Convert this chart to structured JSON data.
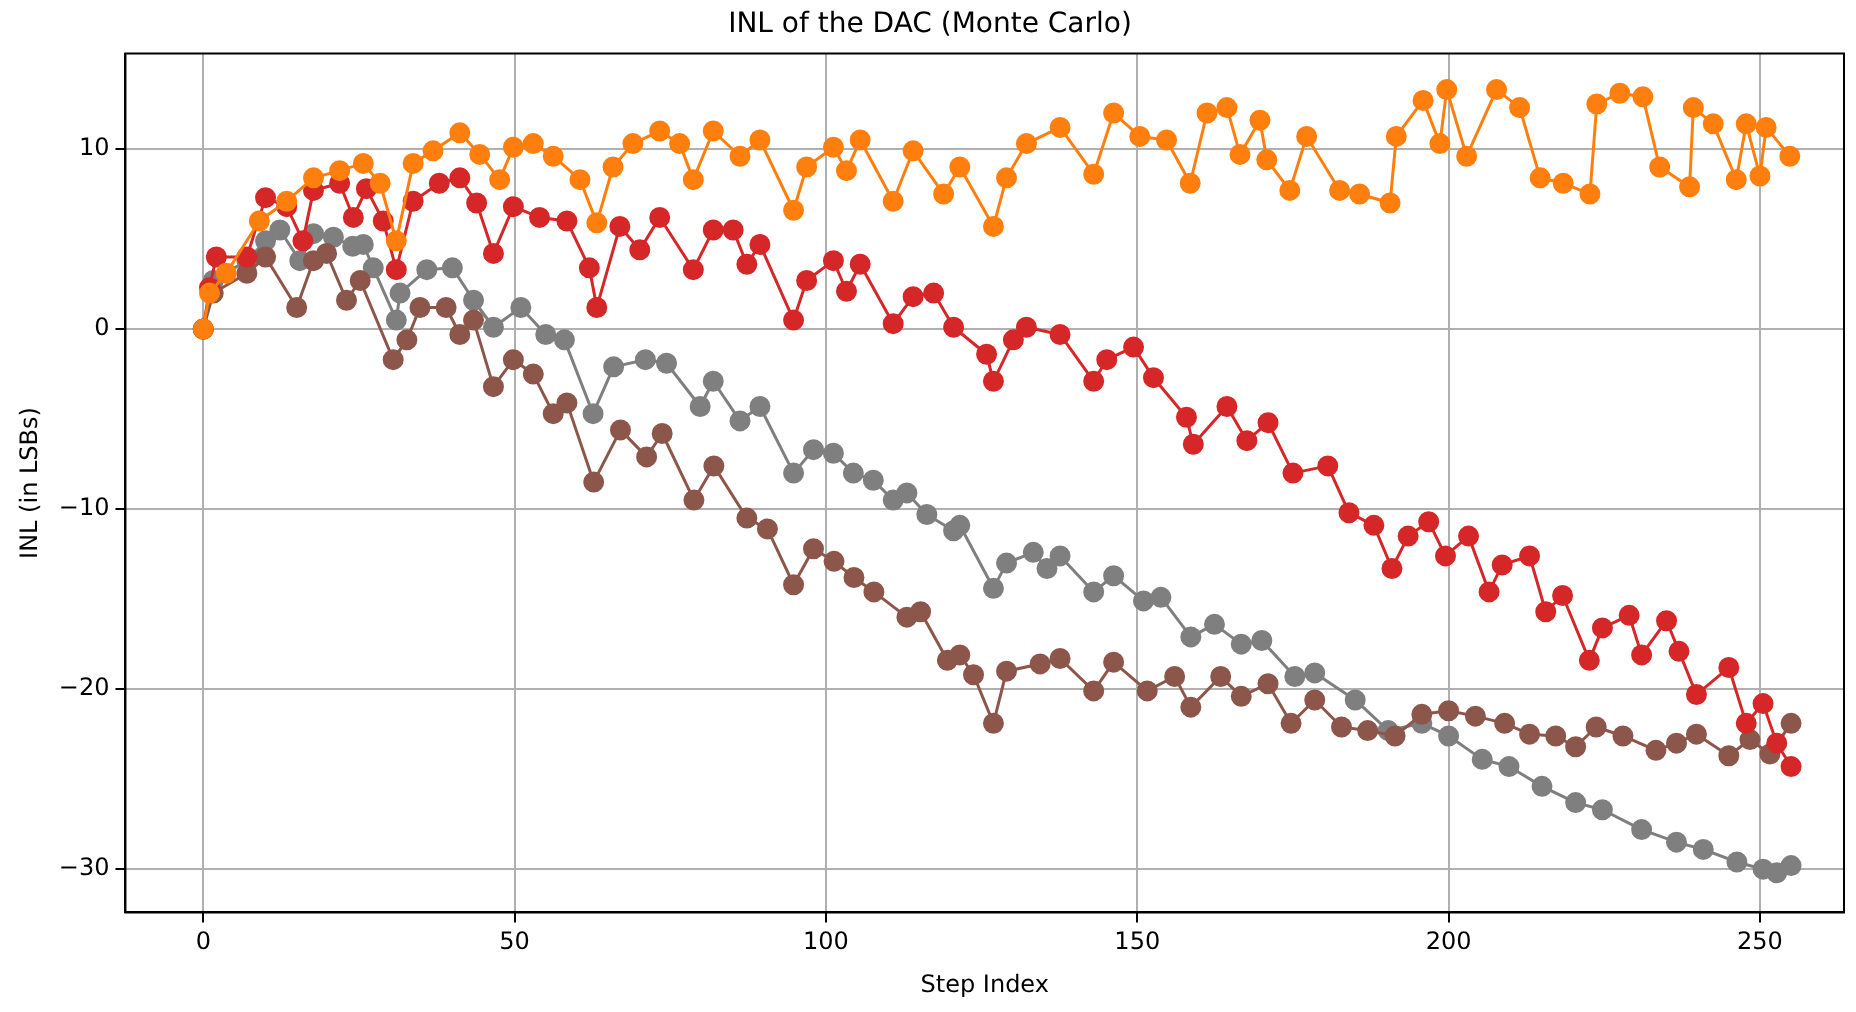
{
  "chart_data": {
    "type": "line",
    "title": "INL of the DAC (Monte Carlo)",
    "xlabel": "Step Index",
    "ylabel": "INL (in LSBs)",
    "xlim": [
      -12.5,
      263.5
    ],
    "ylim": [
      -32.4,
      15.3
    ],
    "xticks": [
      0,
      50,
      100,
      150,
      200,
      250
    ],
    "yticks": [
      -30,
      -20,
      -10,
      0,
      10
    ],
    "grid": true,
    "marker": "circle",
    "line_style": "solid",
    "series": [
      {
        "color": "#ff7f0e",
        "x": [
          0,
          1,
          3.7,
          9,
          13.4,
          17.7,
          21.9,
          25.7,
          28.4,
          31,
          33.7,
          36.9,
          41.2,
          44.4,
          47.6,
          49.8,
          53,
          56.2,
          60.5,
          63.2,
          65.8,
          69,
          73.3,
          76.5,
          78.7,
          81.9,
          86.2,
          89.4,
          94.8,
          96.9,
          101.2,
          103.3,
          105.5,
          110.8,
          114,
          118.9,
          121.5,
          126.9,
          129,
          132.2,
          137.6,
          143,
          146.2,
          150.4,
          154.7,
          158.5,
          161.2,
          164.4,
          166.5,
          169.7,
          170.8,
          174.5,
          177.2,
          182.5,
          185.7,
          190.6,
          191.6,
          195.9,
          198.6,
          199.7,
          202.9,
          207.7,
          211.4,
          214.7,
          218.4,
          222.7,
          223.8,
          227.5,
          231.2,
          233.9,
          238.7,
          239.3,
          242.5,
          246.2,
          247.8,
          250,
          251,
          254.8
        ],
        "values": [
          0,
          2,
          3.1,
          6,
          7.1,
          8.4,
          8.8,
          9.2,
          8.1,
          4.9,
          9.2,
          9.9,
          10.9,
          9.7,
          8.3,
          10.1,
          10.3,
          9.6,
          8.3,
          5.9,
          9,
          10.3,
          11,
          10.3,
          8.3,
          11,
          9.6,
          10.5,
          6.6,
          9,
          10.1,
          8.8,
          10.5,
          7.1,
          9.9,
          7.5,
          9,
          5.7,
          8.4,
          10.3,
          11.2,
          8.6,
          12,
          10.7,
          10.5,
          8.1,
          12,
          12.3,
          9.7,
          11.6,
          9.4,
          7.7,
          10.7,
          7.7,
          7.5,
          7,
          10.7,
          12.7,
          10.3,
          13.3,
          9.6,
          13.3,
          12.3,
          8.4,
          8.1,
          7.5,
          12.5,
          13.1,
          12.9,
          9,
          7.9,
          12.3,
          11.4,
          8.3,
          11.4,
          8.5,
          11.2,
          9.6
        ]
      },
      {
        "color": "#d62728",
        "x": [
          0,
          1,
          2.1,
          7,
          10,
          13.4,
          16,
          17.7,
          21.9,
          24.1,
          26.2,
          28.9,
          31,
          33.7,
          37.9,
          41.2,
          43.9,
          46.6,
          49.8,
          54,
          58.4,
          62,
          63.2,
          66.9,
          70.1,
          73.3,
          78.7,
          81.9,
          85.1,
          87.3,
          89.4,
          94.8,
          96.9,
          101.2,
          103.3,
          105.5,
          110.8,
          114,
          117.3,
          120.5,
          125.8,
          126.9,
          130.1,
          132.2,
          137.6,
          143,
          145.1,
          149.4,
          152.6,
          157.9,
          159,
          164.4,
          167.6,
          171,
          175,
          180.6,
          184,
          188,
          190.9,
          193.5,
          196.8,
          199.5,
          203.2,
          206.5,
          208.6,
          213,
          215.6,
          218.3,
          222.6,
          224.7,
          229,
          231,
          235,
          237,
          239.8,
          245,
          247.8,
          250.5,
          252.7,
          255
        ],
        "values": [
          0,
          2.3,
          4,
          4,
          7.3,
          6.8,
          4.9,
          7.7,
          8.1,
          6.2,
          7.8,
          6,
          3.3,
          7.1,
          8.1,
          8.4,
          7,
          4.2,
          6.8,
          6.2,
          6,
          3.4,
          1.2,
          5.7,
          4.4,
          6.2,
          3.3,
          5.5,
          5.5,
          3.6,
          4.7,
          0.5,
          2.7,
          3.8,
          2.1,
          3.6,
          0.3,
          1.8,
          2,
          0.1,
          -1.4,
          -2.9,
          -0.6,
          0.1,
          -0.3,
          -2.9,
          -1.7,
          -1,
          -2.7,
          -4.9,
          -6.4,
          -4.3,
          -6.2,
          -5.2,
          -8,
          -7.6,
          -10.2,
          -10.9,
          -13.3,
          -11.5,
          -10.7,
          -12.6,
          -11.5,
          -14.6,
          -13.1,
          -12.6,
          -15.7,
          -14.8,
          -18.4,
          -16.6,
          -15.9,
          -18.1,
          -16.2,
          -17.9,
          -20.3,
          -18.8,
          -21.9,
          -20.8,
          -23,
          -24.3
        ]
      },
      {
        "color": "#8c564b",
        "x": [
          0,
          1.6,
          7,
          10,
          15,
          17.7,
          19.8,
          23,
          25.2,
          30.5,
          32.7,
          34.8,
          39,
          41.2,
          43.4,
          46.6,
          49.8,
          53,
          56.2,
          58.4,
          62.7,
          67,
          71.2,
          73.7,
          78.8,
          82,
          87.3,
          90.6,
          94.8,
          98,
          101.3,
          104.5,
          107.7,
          113,
          115.2,
          119.5,
          121.5,
          123.7,
          126.9,
          129,
          134.4,
          137.6,
          143,
          146.2,
          151.6,
          156,
          158.6,
          163.4,
          166.7,
          171,
          174.7,
          178.5,
          182.8,
          187,
          191.4,
          195.7,
          200,
          204.3,
          209,
          213,
          217.2,
          220.4,
          223.7,
          228,
          233.3,
          236.6,
          239.8,
          245,
          248.4,
          251.6,
          255
        ],
        "values": [
          0,
          2,
          3.1,
          4,
          1.2,
          3.8,
          4.2,
          1.6,
          2.7,
          -1.7,
          -0.6,
          1.2,
          1.2,
          -0.3,
          0.5,
          -3.2,
          -1.7,
          -2.5,
          -4.7,
          -4.1,
          -8.5,
          -5.6,
          -7.1,
          -5.8,
          -9.5,
          -7.6,
          -10.5,
          -11.1,
          -14.2,
          -12.2,
          -12.9,
          -13.8,
          -14.6,
          -16,
          -15.7,
          -18.4,
          -18.1,
          -19.2,
          -21.9,
          -19,
          -18.6,
          -18.3,
          -20.1,
          -18.5,
          -20.1,
          -19.3,
          -21,
          -19.3,
          -20.4,
          -19.7,
          -21.9,
          -20.6,
          -22.1,
          -22.3,
          -22.6,
          -21.4,
          -21.2,
          -21.5,
          -21.9,
          -22.5,
          -22.6,
          -23.2,
          -22.1,
          -22.6,
          -23.4,
          -23,
          -22.5,
          -23.7,
          -22.8,
          -23.6,
          -21.9
        ]
      },
      {
        "color": "#7f7f7f",
        "x": [
          0,
          1.6,
          7,
          10,
          12.3,
          15.5,
          17.7,
          20.9,
          24,
          25.7,
          27.3,
          31,
          31.6,
          35.9,
          40,
          43.4,
          46.6,
          51,
          55,
          58,
          62.6,
          65.9,
          71,
          74.4,
          79.8,
          81.9,
          86.2,
          89.4,
          94.8,
          98,
          101.2,
          104.4,
          107.6,
          110.8,
          113,
          116.2,
          120.5,
          121.5,
          126.9,
          129,
          133.3,
          135.5,
          137.6,
          143,
          146.2,
          151,
          153.8,
          158.6,
          162.4,
          166.7,
          170,
          175.3,
          178.5,
          185,
          190.3,
          195.7,
          200,
          205.4,
          209.7,
          215,
          220.4,
          224.7,
          231,
          236.6,
          240.9,
          246.3,
          250.5,
          252.7,
          255
        ],
        "values": [
          0,
          2.7,
          3.8,
          4.9,
          5.5,
          3.8,
          5.3,
          5.1,
          4.6,
          4.7,
          3.4,
          0.5,
          2,
          3.3,
          3.4,
          1.6,
          0.1,
          1.2,
          -0.3,
          -0.6,
          -4.7,
          -2.1,
          -1.7,
          -1.9,
          -4.3,
          -2.9,
          -5.1,
          -4.3,
          -8,
          -6.7,
          -6.9,
          -8,
          -8.4,
          -9.5,
          -9.1,
          -10.3,
          -11.2,
          -10.9,
          -14.4,
          -13,
          -12.4,
          -13.3,
          -12.6,
          -14.6,
          -13.7,
          -15.1,
          -14.9,
          -17.1,
          -16.4,
          -17.5,
          -17.3,
          -19.3,
          -19.1,
          -20.6,
          -22.3,
          -21.9,
          -22.6,
          -23.9,
          -24.3,
          -25.4,
          -26.3,
          -26.7,
          -27.8,
          -28.5,
          -28.9,
          -29.6,
          -30,
          -30.2,
          -29.8
        ]
      }
    ]
  }
}
